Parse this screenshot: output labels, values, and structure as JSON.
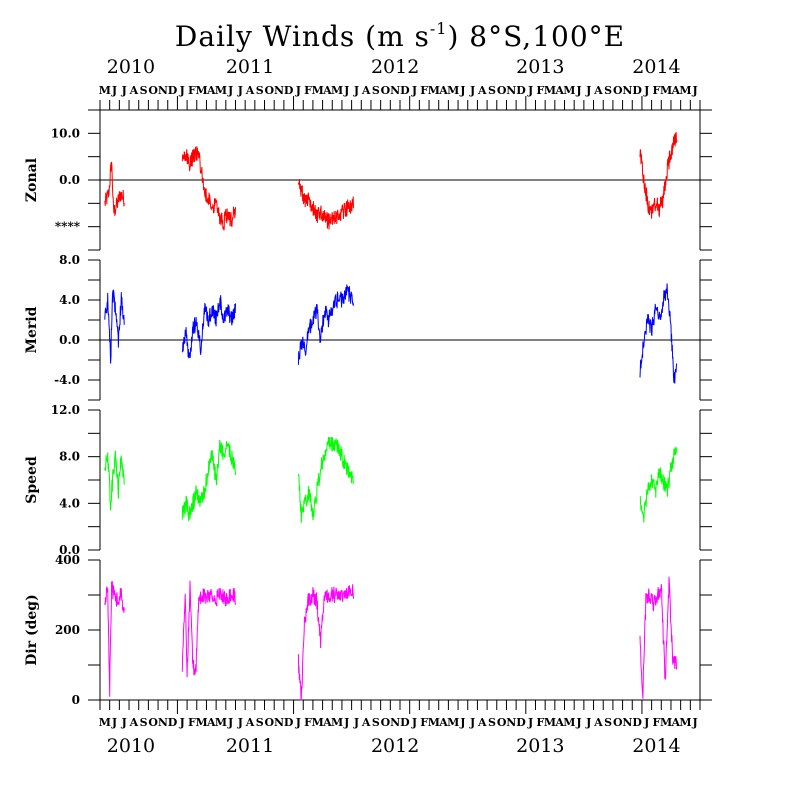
{
  "chart_data": {
    "type": "line",
    "title": "Daily Winds (m s",
    "title_sup": "-1",
    "title_location": ") 8°S,100°E",
    "x_axis": {
      "start": "2010-05",
      "months_shown": 62,
      "month_letters": [
        "M",
        "J",
        "J",
        "A",
        "S",
        "O",
        "N",
        "D",
        "J",
        "F",
        "M",
        "A",
        "M",
        "J",
        "J",
        "A",
        "S",
        "O",
        "N",
        "D",
        "J",
        "F",
        "M",
        "A",
        "M",
        "J",
        "J",
        "A",
        "S",
        "O",
        "N",
        "D",
        "J",
        "F",
        "M",
        "A",
        "M",
        "J",
        "J",
        "A",
        "S",
        "O",
        "N",
        "D",
        "J",
        "F",
        "M",
        "A",
        "M",
        "J",
        "J",
        "A",
        "S",
        "O",
        "N",
        "D",
        "J",
        "F",
        "M",
        "A",
        "M",
        "J"
      ],
      "years": [
        {
          "label": "2010",
          "month_index": 3.2
        },
        {
          "label": "2011",
          "month_index": 15.5
        },
        {
          "label": "2012",
          "month_index": 30.5
        },
        {
          "label": "2013",
          "month_index": 45.5
        },
        {
          "label": "2014",
          "month_index": 57.5
        }
      ]
    },
    "panels": [
      {
        "name": "zonal",
        "ylabel": "Zonal",
        "color": "#ff0000",
        "ylim": [
          -15,
          15
        ],
        "ticks": [
          {
            "v": 10,
            "label": "10.0"
          },
          {
            "v": 0,
            "label": "0.0"
          },
          {
            "v": -10,
            "label": "****"
          }
        ],
        "minor": [
          5,
          -5,
          -15,
          15
        ],
        "zero_line": true,
        "segments": [
          {
            "start": 0.5,
            "end": 2.5,
            "points": [
              [
                0.5,
                -5
              ],
              [
                0.9,
                -3
              ],
              [
                1.2,
                4
              ],
              [
                1.4,
                -7
              ],
              [
                1.8,
                -5
              ],
              [
                2.1,
                -3
              ],
              [
                2.5,
                -4
              ]
            ]
          },
          {
            "start": 8.5,
            "end": 14.0,
            "points": [
              [
                8.5,
                4
              ],
              [
                8.9,
                6
              ],
              [
                9.2,
                3
              ],
              [
                9.6,
                5
              ],
              [
                10.0,
                6
              ],
              [
                10.4,
                3
              ],
              [
                10.8,
                -3
              ],
              [
                11.2,
                -4
              ],
              [
                11.6,
                -6
              ],
              [
                12.0,
                -4
              ],
              [
                12.4,
                -8
              ],
              [
                12.8,
                -9
              ],
              [
                13.2,
                -7
              ],
              [
                13.6,
                -9
              ],
              [
                14.0,
                -6
              ]
            ]
          },
          {
            "start": 20.5,
            "end": 26.2,
            "points": [
              [
                20.5,
                0
              ],
              [
                20.8,
                -2
              ],
              [
                21.2,
                -5
              ],
              [
                21.6,
                -4
              ],
              [
                22.0,
                -6
              ],
              [
                22.4,
                -8
              ],
              [
                22.8,
                -7
              ],
              [
                23.2,
                -8
              ],
              [
                23.6,
                -9
              ],
              [
                24.0,
                -8
              ],
              [
                24.5,
                -8
              ],
              [
                25.0,
                -7
              ],
              [
                25.5,
                -6
              ],
              [
                26.2,
                -5
              ]
            ]
          },
          {
            "start": 55.8,
            "end": 59.6,
            "points": [
              [
                55.8,
                6
              ],
              [
                56.2,
                0
              ],
              [
                56.6,
                -5
              ],
              [
                57.0,
                -7
              ],
              [
                57.4,
                -5
              ],
              [
                57.8,
                -6
              ],
              [
                58.2,
                -4
              ],
              [
                58.6,
                2
              ],
              [
                59.0,
                6
              ],
              [
                59.3,
                8
              ],
              [
                59.6,
                10
              ]
            ]
          }
        ]
      },
      {
        "name": "meridional",
        "ylabel": "Merid",
        "color": "#0000ff",
        "ylim": [
          -6,
          8
        ],
        "ticks": [
          {
            "v": 8,
            "label": "8.0"
          },
          {
            "v": 4,
            "label": "4.0"
          },
          {
            "v": 0,
            "label": "0.0"
          },
          {
            "v": -4,
            "label": "-4.0"
          }
        ],
        "minor": [
          6,
          2,
          -2,
          -6
        ],
        "zero_line": true,
        "segments": [
          {
            "start": 0.5,
            "end": 2.5,
            "points": [
              [
                0.5,
                2
              ],
              [
                0.8,
                4
              ],
              [
                1.1,
                -2
              ],
              [
                1.3,
                5
              ],
              [
                1.6,
                3
              ],
              [
                1.9,
                0
              ],
              [
                2.2,
                4
              ],
              [
                2.5,
                2
              ]
            ]
          },
          {
            "start": 8.5,
            "end": 14.0,
            "points": [
              [
                8.5,
                -1
              ],
              [
                8.9,
                1
              ],
              [
                9.2,
                -2
              ],
              [
                9.6,
                1
              ],
              [
                10.0,
                2
              ],
              [
                10.4,
                -1
              ],
              [
                10.8,
                3
              ],
              [
                11.2,
                2
              ],
              [
                11.6,
                3
              ],
              [
                12.0,
                2
              ],
              [
                12.4,
                4
              ],
              [
                12.8,
                2
              ],
              [
                13.2,
                3
              ],
              [
                13.6,
                2
              ],
              [
                14.0,
                3
              ]
            ]
          },
          {
            "start": 20.5,
            "end": 26.2,
            "points": [
              [
                20.5,
                -2
              ],
              [
                20.8,
                0
              ],
              [
                21.2,
                -1
              ],
              [
                21.6,
                1
              ],
              [
                22.0,
                2
              ],
              [
                22.4,
                3
              ],
              [
                22.8,
                0
              ],
              [
                23.2,
                3
              ],
              [
                23.6,
                2
              ],
              [
                24.0,
                3
              ],
              [
                24.5,
                4
              ],
              [
                25.0,
                4
              ],
              [
                25.5,
                5
              ],
              [
                26.2,
                4
              ]
            ]
          },
          {
            "start": 55.8,
            "end": 59.6,
            "points": [
              [
                55.8,
                -3
              ],
              [
                56.2,
                0
              ],
              [
                56.6,
                2
              ],
              [
                57.0,
                1
              ],
              [
                57.4,
                3
              ],
              [
                57.8,
                2
              ],
              [
                58.2,
                4
              ],
              [
                58.6,
                5
              ],
              [
                59.0,
                1
              ],
              [
                59.3,
                -4
              ],
              [
                59.6,
                -3
              ]
            ]
          }
        ]
      },
      {
        "name": "speed",
        "ylabel": "Speed",
        "color": "#00ff00",
        "ylim": [
          0,
          12
        ],
        "ticks": [
          {
            "v": 12,
            "label": "12.0"
          },
          {
            "v": 8,
            "label": "8.0"
          },
          {
            "v": 4,
            "label": "4.0"
          },
          {
            "v": 0,
            "label": "0.0"
          }
        ],
        "minor": [
          10,
          6,
          2
        ],
        "zero_line": false,
        "segments": [
          {
            "start": 0.5,
            "end": 2.5,
            "points": [
              [
                0.5,
                7
              ],
              [
                0.8,
                8
              ],
              [
                1.1,
                4
              ],
              [
                1.3,
                6
              ],
              [
                1.6,
                8
              ],
              [
                1.9,
                5
              ],
              [
                2.2,
                8
              ],
              [
                2.5,
                6
              ]
            ]
          },
          {
            "start": 8.5,
            "end": 14.0,
            "points": [
              [
                8.5,
                3
              ],
              [
                8.9,
                4
              ],
              [
                9.2,
                3
              ],
              [
                9.6,
                4
              ],
              [
                10.0,
                5
              ],
              [
                10.4,
                4
              ],
              [
                10.8,
                5
              ],
              [
                11.2,
                7
              ],
              [
                11.6,
                8
              ],
              [
                12.0,
                6
              ],
              [
                12.4,
                9
              ],
              [
                12.8,
                8
              ],
              [
                13.2,
                9
              ],
              [
                13.6,
                8
              ],
              [
                14.0,
                7
              ]
            ]
          },
          {
            "start": 20.5,
            "end": 26.2,
            "points": [
              [
                20.5,
                7
              ],
              [
                20.8,
                3
              ],
              [
                21.2,
                4
              ],
              [
                21.6,
                5
              ],
              [
                22.0,
                3
              ],
              [
                22.4,
                5
              ],
              [
                22.8,
                7
              ],
              [
                23.2,
                8
              ],
              [
                23.6,
                9
              ],
              [
                24.0,
                9
              ],
              [
                24.5,
                9
              ],
              [
                25.0,
                8
              ],
              [
                25.5,
                7
              ],
              [
                26.2,
                6
              ]
            ]
          },
          {
            "start": 55.8,
            "end": 59.6,
            "points": [
              [
                55.8,
                4
              ],
              [
                56.2,
                3
              ],
              [
                56.6,
                5
              ],
              [
                57.0,
                6
              ],
              [
                57.4,
                5
              ],
              [
                57.8,
                7
              ],
              [
                58.2,
                6
              ],
              [
                58.6,
                5
              ],
              [
                59.0,
                7
              ],
              [
                59.3,
                8
              ],
              [
                59.6,
                9
              ]
            ]
          }
        ]
      },
      {
        "name": "direction",
        "ylabel": "Dir (deg)",
        "color": "#ff00ff",
        "ylim": [
          0,
          400
        ],
        "ticks": [
          {
            "v": 400,
            "label": "400"
          },
          {
            "v": 200,
            "label": "200"
          },
          {
            "v": 0,
            "label": "0"
          }
        ],
        "minor": [
          300,
          100
        ],
        "zero_line": false,
        "segments": [
          {
            "start": 0.5,
            "end": 2.5,
            "points": [
              [
                0.5,
                290
              ],
              [
                0.8,
                310
              ],
              [
                1.0,
                30
              ],
              [
                1.2,
                320
              ],
              [
                1.5,
                300
              ],
              [
                1.8,
                280
              ],
              [
                2.1,
                310
              ],
              [
                2.5,
                260
              ]
            ]
          },
          {
            "start": 8.5,
            "end": 14.0,
            "points": [
              [
                8.5,
                100
              ],
              [
                8.8,
                300
              ],
              [
                9.0,
                80
              ],
              [
                9.3,
                320
              ],
              [
                9.6,
                100
              ],
              [
                9.9,
                80
              ],
              [
                10.2,
                280
              ],
              [
                10.6,
                300
              ],
              [
                11.0,
                290
              ],
              [
                11.5,
                300
              ],
              [
                12.0,
                290
              ],
              [
                12.5,
                300
              ],
              [
                13.0,
                290
              ],
              [
                13.5,
                300
              ],
              [
                14.0,
                295
              ]
            ]
          },
          {
            "start": 20.5,
            "end": 26.2,
            "points": [
              [
                20.5,
                110
              ],
              [
                20.8,
                0
              ],
              [
                21.1,
                220
              ],
              [
                21.5,
                280
              ],
              [
                22.0,
                300
              ],
              [
                22.4,
                280
              ],
              [
                22.8,
                170
              ],
              [
                23.2,
                290
              ],
              [
                23.6,
                295
              ],
              [
                24.0,
                300
              ],
              [
                24.5,
                300
              ],
              [
                25.0,
                305
              ],
              [
                25.5,
                300
              ],
              [
                26.2,
                310
              ]
            ]
          },
          {
            "start": 55.8,
            "end": 59.6,
            "points": [
              [
                55.8,
                170
              ],
              [
                56.1,
                20
              ],
              [
                56.4,
                280
              ],
              [
                56.8,
                300
              ],
              [
                57.2,
                270
              ],
              [
                57.6,
                300
              ],
              [
                58.0,
                320
              ],
              [
                58.4,
                60
              ],
              [
                58.8,
                330
              ],
              [
                59.2,
                110
              ],
              [
                59.6,
                100
              ]
            ]
          }
        ]
      }
    ]
  }
}
